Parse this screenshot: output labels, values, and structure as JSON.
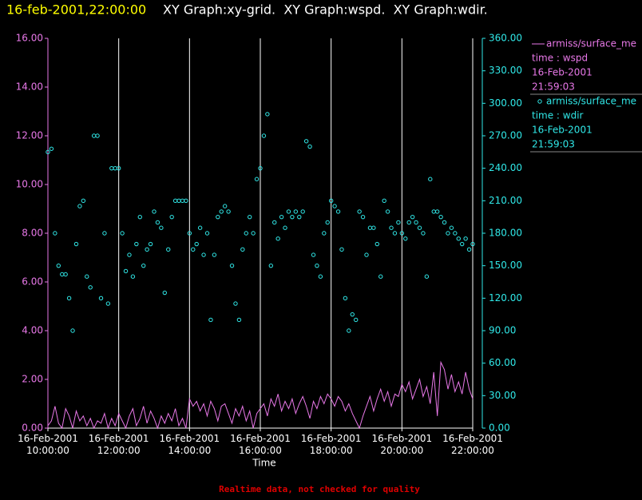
{
  "chart_data": {
    "type": "line+scatter",
    "title_time": "16-feb-2001,22:00:00",
    "title": "XY Graph:xy-grid.  XY Graph:wspd.  XY Graph:wdir.",
    "x_label": "Time",
    "footnote": "Realtime data, not checked for quality",
    "grid": true,
    "xlim": [
      "2001-02-16T10:00:00",
      "2001-02-16T22:00:00"
    ],
    "xticks": [
      {
        "value": "2001-02-16T10:00:00",
        "label": "16-Feb-2001 10:00:00"
      },
      {
        "value": "2001-02-16T12:00:00",
        "label": "16-Feb-2001 12:00:00"
      },
      {
        "value": "2001-02-16T14:00:00",
        "label": "16-Feb-2001 14:00:00"
      },
      {
        "value": "2001-02-16T16:00:00",
        "label": "16-Feb-2001 16:00:00"
      },
      {
        "value": "2001-02-16T18:00:00",
        "label": "16-Feb-2001 18:00:00"
      },
      {
        "value": "2001-02-16T20:00:00",
        "label": "16-Feb-2001 20:00:00"
      },
      {
        "value": "2001-02-16T22:00:00",
        "label": "16-Feb-2001 22:00:00"
      }
    ],
    "ylim": [
      0,
      16
    ],
    "yticks": [
      {
        "value": 0,
        "label": "0.00"
      },
      {
        "value": 2,
        "label": "2.00"
      },
      {
        "value": 4,
        "label": "4.00"
      },
      {
        "value": 6,
        "label": "6.00"
      },
      {
        "value": 8,
        "label": "8.00"
      },
      {
        "value": 10,
        "label": "10.00"
      },
      {
        "value": 12,
        "label": "12.00"
      },
      {
        "value": 14,
        "label": "14.00"
      },
      {
        "value": 16,
        "label": "16.00"
      }
    ],
    "y2lim": [
      0,
      360
    ],
    "y2ticks": [
      {
        "value": 0,
        "label": "0.00"
      },
      {
        "value": 30,
        "label": "30.00"
      },
      {
        "value": 60,
        "label": "60.00"
      },
      {
        "value": 90,
        "label": "90.00"
      },
      {
        "value": 120,
        "label": "120.00"
      },
      {
        "value": 150,
        "label": "150.00"
      },
      {
        "value": 180,
        "label": "180.00"
      },
      {
        "value": 210,
        "label": "210.00"
      },
      {
        "value": 240,
        "label": "240.00"
      },
      {
        "value": 270,
        "label": "270.00"
      },
      {
        "value": 300,
        "label": "300.00"
      },
      {
        "value": 330,
        "label": "330.00"
      },
      {
        "value": 360,
        "label": "360.00"
      }
    ],
    "x": [
      "2001-02-16T10:00:00",
      "2001-02-16T10:06:00",
      "2001-02-16T10:12:00",
      "2001-02-16T10:18:00",
      "2001-02-16T10:24:00",
      "2001-02-16T10:30:00",
      "2001-02-16T10:36:00",
      "2001-02-16T10:42:00",
      "2001-02-16T10:48:00",
      "2001-02-16T10:54:00",
      "2001-02-16T11:00:00",
      "2001-02-16T11:06:00",
      "2001-02-16T11:12:00",
      "2001-02-16T11:18:00",
      "2001-02-16T11:24:00",
      "2001-02-16T11:30:00",
      "2001-02-16T11:36:00",
      "2001-02-16T11:42:00",
      "2001-02-16T11:48:00",
      "2001-02-16T11:54:00",
      "2001-02-16T12:00:00",
      "2001-02-16T12:06:00",
      "2001-02-16T12:12:00",
      "2001-02-16T12:18:00",
      "2001-02-16T12:24:00",
      "2001-02-16T12:30:00",
      "2001-02-16T12:36:00",
      "2001-02-16T12:42:00",
      "2001-02-16T12:48:00",
      "2001-02-16T12:54:00",
      "2001-02-16T13:00:00",
      "2001-02-16T13:06:00",
      "2001-02-16T13:12:00",
      "2001-02-16T13:18:00",
      "2001-02-16T13:24:00",
      "2001-02-16T13:30:00",
      "2001-02-16T13:36:00",
      "2001-02-16T13:42:00",
      "2001-02-16T13:48:00",
      "2001-02-16T13:54:00",
      "2001-02-16T14:00:00",
      "2001-02-16T14:06:00",
      "2001-02-16T14:12:00",
      "2001-02-16T14:18:00",
      "2001-02-16T14:24:00",
      "2001-02-16T14:30:00",
      "2001-02-16T14:36:00",
      "2001-02-16T14:42:00",
      "2001-02-16T14:48:00",
      "2001-02-16T14:54:00",
      "2001-02-16T15:00:00",
      "2001-02-16T15:06:00",
      "2001-02-16T15:12:00",
      "2001-02-16T15:18:00",
      "2001-02-16T15:24:00",
      "2001-02-16T15:30:00",
      "2001-02-16T15:36:00",
      "2001-02-16T15:42:00",
      "2001-02-16T15:48:00",
      "2001-02-16T15:54:00",
      "2001-02-16T16:00:00",
      "2001-02-16T16:06:00",
      "2001-02-16T16:12:00",
      "2001-02-16T16:18:00",
      "2001-02-16T16:24:00",
      "2001-02-16T16:30:00",
      "2001-02-16T16:36:00",
      "2001-02-16T16:42:00",
      "2001-02-16T16:48:00",
      "2001-02-16T16:54:00",
      "2001-02-16T17:00:00",
      "2001-02-16T17:06:00",
      "2001-02-16T17:12:00",
      "2001-02-16T17:18:00",
      "2001-02-16T17:24:00",
      "2001-02-16T17:30:00",
      "2001-02-16T17:36:00",
      "2001-02-16T17:42:00",
      "2001-02-16T17:48:00",
      "2001-02-16T17:54:00",
      "2001-02-16T18:00:00",
      "2001-02-16T18:06:00",
      "2001-02-16T18:12:00",
      "2001-02-16T18:18:00",
      "2001-02-16T18:24:00",
      "2001-02-16T18:30:00",
      "2001-02-16T18:36:00",
      "2001-02-16T18:42:00",
      "2001-02-16T18:48:00",
      "2001-02-16T18:54:00",
      "2001-02-16T19:00:00",
      "2001-02-16T19:06:00",
      "2001-02-16T19:12:00",
      "2001-02-16T19:18:00",
      "2001-02-16T19:24:00",
      "2001-02-16T19:30:00",
      "2001-02-16T19:36:00",
      "2001-02-16T19:42:00",
      "2001-02-16T19:48:00",
      "2001-02-16T19:54:00",
      "2001-02-16T20:00:00",
      "2001-02-16T20:06:00",
      "2001-02-16T20:12:00",
      "2001-02-16T20:18:00",
      "2001-02-16T20:24:00",
      "2001-02-16T20:30:00",
      "2001-02-16T20:36:00",
      "2001-02-16T20:42:00",
      "2001-02-16T20:48:00",
      "2001-02-16T20:54:00",
      "2001-02-16T21:00:00",
      "2001-02-16T21:06:00",
      "2001-02-16T21:12:00",
      "2001-02-16T21:18:00",
      "2001-02-16T21:24:00",
      "2001-02-16T21:30:00",
      "2001-02-16T21:36:00",
      "2001-02-16T21:42:00",
      "2001-02-16T21:48:00",
      "2001-02-16T21:54:00",
      "2001-02-16T22:00:00"
    ],
    "series": [
      {
        "name": "armiss/surface_me",
        "kind": "line",
        "color": "#e878e8",
        "legend_lines": [
          "time : wspd",
          "16-Feb-2001",
          "21:59:03"
        ],
        "values": [
          0.1,
          0.3,
          0.9,
          0.2,
          0.0,
          0.8,
          0.5,
          0.0,
          0.7,
          0.3,
          0.5,
          0.1,
          0.4,
          0.0,
          0.3,
          0.2,
          0.6,
          0.0,
          0.4,
          0.1,
          0.6,
          0.3,
          0.0,
          0.5,
          0.8,
          0.1,
          0.4,
          0.9,
          0.2,
          0.7,
          0.4,
          0.0,
          0.5,
          0.2,
          0.6,
          0.3,
          0.8,
          0.1,
          0.4,
          0.0,
          1.2,
          0.9,
          1.1,
          0.7,
          1.0,
          0.5,
          1.1,
          0.8,
          0.3,
          0.9,
          1.0,
          0.6,
          0.2,
          0.8,
          0.5,
          0.9,
          0.3,
          0.7,
          0.0,
          0.6,
          0.8,
          1.0,
          0.5,
          1.2,
          0.9,
          1.4,
          0.7,
          1.1,
          0.8,
          1.2,
          0.6,
          1.0,
          1.3,
          0.9,
          0.4,
          1.1,
          0.8,
          1.3,
          1.0,
          1.4,
          1.2,
          0.9,
          1.3,
          1.1,
          0.7,
          1.0,
          0.6,
          0.3,
          0.0,
          0.5,
          0.9,
          1.3,
          0.7,
          1.2,
          1.6,
          1.1,
          1.5,
          0.9,
          1.4,
          1.3,
          1.8,
          1.5,
          1.9,
          1.2,
          1.6,
          2.0,
          1.3,
          1.7,
          1.0,
          2.3,
          0.5,
          2.7,
          2.4,
          1.6,
          2.2,
          1.5,
          1.9,
          1.4,
          2.3,
          1.6,
          1.2
        ]
      },
      {
        "name": "armiss/surface_me",
        "kind": "scatter",
        "axis": "y2",
        "color": "#30e8e8",
        "legend_lines": [
          "time : wdir",
          "16-Feb-2001",
          "21:59:03"
        ],
        "values": [
          255,
          258,
          180,
          150,
          142,
          142,
          120,
          90,
          170,
          205,
          210,
          140,
          130,
          270,
          270,
          120,
          180,
          115,
          240,
          240,
          240,
          180,
          145,
          160,
          140,
          170,
          195,
          150,
          165,
          170,
          200,
          190,
          185,
          125,
          165,
          195,
          210,
          210,
          210,
          210,
          180,
          165,
          170,
          185,
          160,
          180,
          100,
          160,
          195,
          200,
          205,
          200,
          150,
          115,
          100,
          165,
          180,
          195,
          180,
          230,
          240,
          270,
          290,
          150,
          190,
          175,
          195,
          185,
          200,
          195,
          200,
          195,
          200,
          265,
          260,
          160,
          150,
          140,
          180,
          190,
          210,
          205,
          200,
          165,
          120,
          90,
          105,
          100,
          200,
          195,
          160,
          185,
          185,
          170,
          140,
          210,
          200,
          185,
          180,
          190,
          180,
          175,
          190,
          195,
          190,
          185,
          180,
          140,
          230,
          200,
          200,
          195,
          190,
          180,
          185,
          180,
          175,
          170,
          175,
          165,
          170
        ]
      }
    ]
  }
}
